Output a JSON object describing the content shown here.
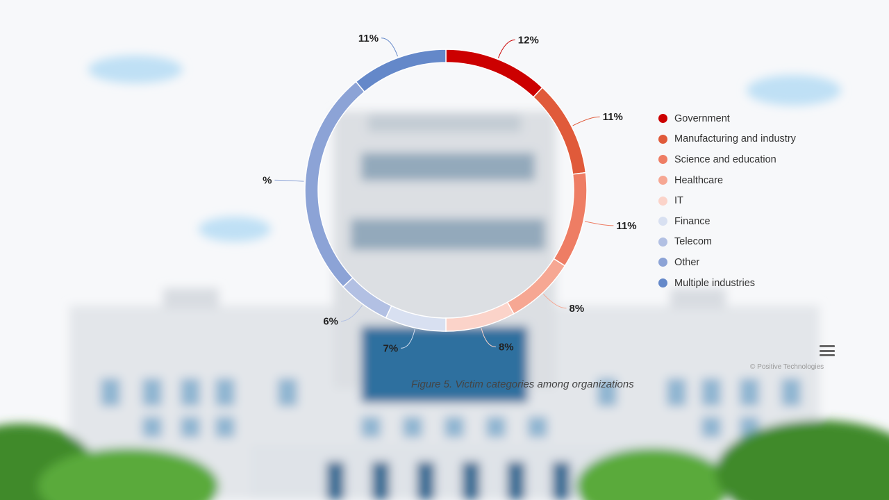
{
  "chart_data": {
    "type": "pie",
    "donut": true,
    "categories": [
      "Government",
      "Manufacturing and industry",
      "Science and education",
      "Healthcare",
      "IT",
      "Finance",
      "Telecom",
      "Other",
      "Multiple industries"
    ],
    "values": [
      12,
      11,
      11,
      8,
      8,
      7,
      6,
      26,
      11
    ],
    "labels": [
      "12%",
      "11%",
      "11%",
      "8%",
      "8%",
      "7%",
      "6%",
      "%",
      "11%"
    ],
    "colors": [
      "#cc0000",
      "#e05a3a",
      "#ee7d64",
      "#f6a793",
      "#fbd3c9",
      "#d8e0f1",
      "#b2c0e3",
      "#8ca3d6",
      "#6488c9"
    ],
    "legend_position": "right"
  },
  "credit": "© Positive Technologies",
  "caption": "Figure 5. Victim categories among organizations"
}
